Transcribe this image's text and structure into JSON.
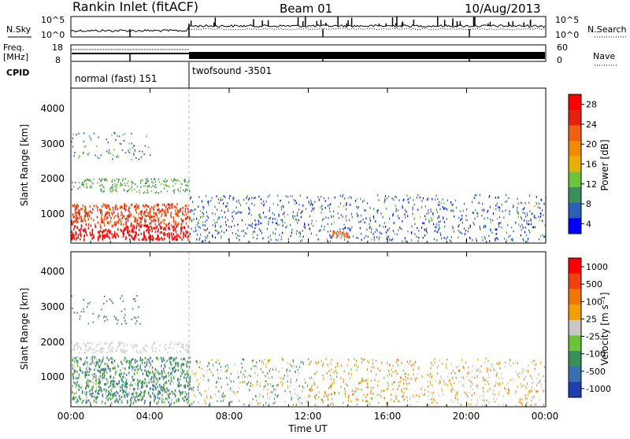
{
  "header": {
    "station": "Rankin Inlet (fitACF)",
    "beam": "Beam 01",
    "date": "10/Aug/2013"
  },
  "noise_panel": {
    "left_label": "N.Sky",
    "left_ticks": [
      "10^5",
      "10^0"
    ],
    "right_label": "N.Search",
    "right_ticks": [
      "10^5",
      "10^0"
    ]
  },
  "freq_panel": {
    "left_label_1": "Freq.",
    "left_label_2": "[MHz]",
    "left_ticks": [
      "18",
      "8"
    ],
    "right_label": "Nave",
    "right_ticks": [
      "60",
      "0"
    ]
  },
  "cpid": {
    "label": "CPID",
    "mode_1": "normal (fast) 151",
    "mode_2": "twofsound -3501"
  },
  "colors": {
    "power": [
      "#0000ff",
      "#2e5fb8",
      "#3a8f5a",
      "#6cc23a",
      "#e8b000",
      "#f08c00",
      "#f06010",
      "#e82010",
      "#ff0000"
    ],
    "velocity": [
      "#2040b0",
      "#3a6fb0",
      "#3a8f5a",
      "#6cc23a",
      "#c8c8c8",
      "#f0a000",
      "#f07800",
      "#f04010",
      "#ff0000"
    ]
  },
  "chart_data": [
    {
      "type": "heatmap",
      "name": "power-panel",
      "ylabel": "Slant Range [km]",
      "yticks": [
        "4000",
        "3000",
        "2000",
        "1000"
      ],
      "ylim": [
        180,
        4500
      ],
      "colorbar_label": "Power [dB]",
      "colorbar_ticks": [
        "28",
        "24",
        "20",
        "16",
        "12",
        "8",
        "4"
      ]
    },
    {
      "type": "heatmap",
      "name": "velocity-panel",
      "xlabel": "Time UT",
      "xticks": [
        "00:00",
        "04:00",
        "08:00",
        "12:00",
        "16:00",
        "20:00",
        "00:00"
      ],
      "ylabel": "Slant Range [km]",
      "yticks": [
        "4000",
        "3000",
        "2000",
        "1000"
      ],
      "ylim": [
        180,
        4500
      ],
      "colorbar_label": "Velocity [m s⁻¹]",
      "colorbar_ticks": [
        "1000",
        "500",
        "100",
        "25",
        "-25",
        "-100",
        "-500",
        "-1000"
      ]
    }
  ]
}
